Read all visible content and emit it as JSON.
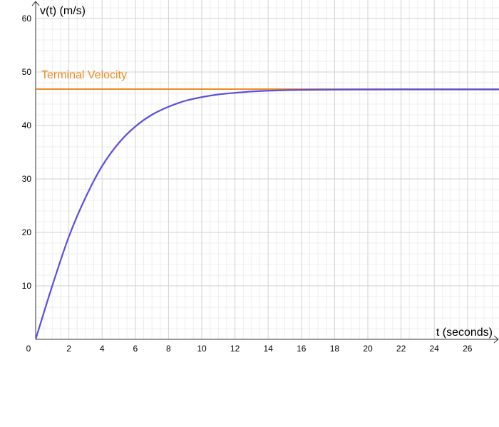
{
  "chart_data": {
    "type": "line",
    "title": "",
    "xlabel": "t (seconds)",
    "ylabel": "v(t) (m/s)",
    "xlim": [
      0,
      28
    ],
    "ylim": [
      0,
      60
    ],
    "x_ticks": [
      0,
      2,
      4,
      6,
      8,
      10,
      12,
      14,
      16,
      18,
      20,
      22,
      24,
      26
    ],
    "y_ticks": [
      10,
      20,
      30,
      40,
      50,
      60
    ],
    "x_tick_labels": [
      "0",
      "2",
      "4",
      "6",
      "8",
      "10",
      "12",
      "14",
      "16",
      "18",
      "20",
      "22",
      "24",
      "26"
    ],
    "y_tick_labels": [
      "10",
      "20",
      "30",
      "40",
      "50",
      "60"
    ],
    "grid": true,
    "series": [
      {
        "name": "",
        "color": "#5a4fe0",
        "x": [
          0,
          1,
          2,
          3,
          4,
          5,
          6,
          7,
          8,
          9,
          10,
          11,
          12,
          13,
          14,
          15,
          16,
          17,
          18,
          20,
          22,
          24,
          26,
          28
        ],
        "y": [
          0,
          10.0,
          19.2,
          26.5,
          32.4,
          36.7,
          39.8,
          42.0,
          43.5,
          44.6,
          45.3,
          45.8,
          46.1,
          46.35,
          46.5,
          46.6,
          46.65,
          46.68,
          46.7,
          46.72,
          46.73,
          46.73,
          46.73,
          46.73
        ]
      }
    ],
    "annotations": [
      {
        "text": "Terminal Velocity",
        "type": "horizontal-line",
        "y": 46.8,
        "color": "#f08a1e"
      }
    ]
  }
}
